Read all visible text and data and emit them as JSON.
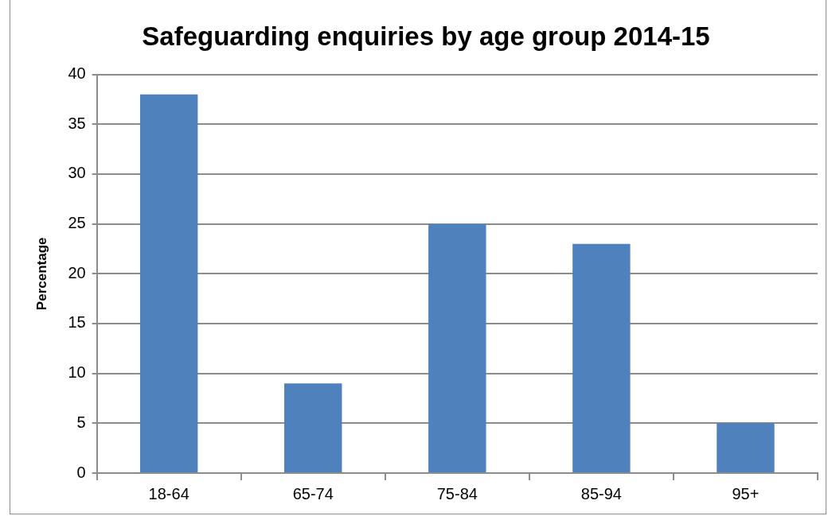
{
  "chart_data": {
    "type": "bar",
    "title": "Safeguarding enquiries by age group 2014-15",
    "ylabel": "Percentage",
    "categories": [
      "18-64",
      "65-74",
      "75-84",
      "85-94",
      "95+"
    ],
    "values": [
      38,
      9,
      25,
      23,
      5
    ],
    "color": "#4f81bd",
    "ylim": [
      0,
      40
    ],
    "yticks": [
      0,
      5,
      10,
      15,
      20,
      25,
      30,
      35,
      40
    ],
    "grid": "y"
  }
}
